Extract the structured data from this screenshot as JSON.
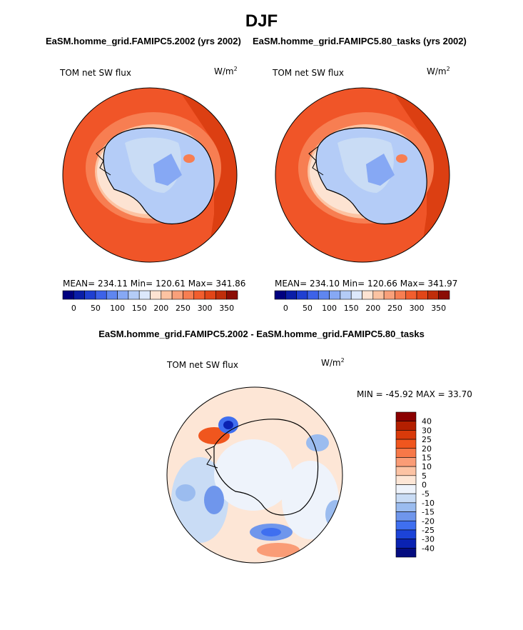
{
  "chart_data": {
    "type": "polar contour map",
    "title": "DJF",
    "panels": [
      {
        "title": "EaSM.homme_grid.FAMIPC5.2002 (yrs 2002)",
        "variable": "TOM net SW flux",
        "units": "W/m2",
        "stats": "MEAN= 234.11   Min= 120.61   Max= 341.86",
        "mean": 234.11,
        "min": 120.61,
        "max": 341.86
      },
      {
        "title": "EaSM.homme_grid.FAMIPC5.80_tasks (yrs 2002)",
        "variable": "TOM net SW flux",
        "units": "W/m2",
        "stats": "MEAN= 234.10   Min= 120.66   Max= 341.97",
        "mean": 234.1,
        "min": 120.66,
        "max": 341.97
      },
      {
        "title": "EaSM.homme_grid.FAMIPC5.2002 - EaSM.homme_grid.FAMIPC5.80_tasks",
        "variable": "TOM net SW flux",
        "units": "W/m2",
        "stats": "MIN = -45.92 MAX =  33.70",
        "min": -45.92,
        "max": 33.7
      }
    ],
    "colorbar_main": {
      "ticks": [
        "0",
        "50",
        "100",
        "150",
        "200",
        "250",
        "300",
        "350"
      ],
      "colors": [
        "#00007f",
        "#0a1ea8",
        "#1f3fd1",
        "#3d62e8",
        "#5f86f0",
        "#86a8f4",
        "#b4ccf7",
        "#dce8fb",
        "#fde3d2",
        "#fcc3a2",
        "#f9a07a",
        "#f77e52",
        "#f25e2e",
        "#e24618",
        "#c02e0a",
        "#8b0d04"
      ]
    },
    "colorbar_diff": {
      "labels": [
        "40",
        "30",
        "25",
        "20",
        "15",
        "10",
        "5",
        "0",
        "-5",
        "-10",
        "-15",
        "-20",
        "-25",
        "-30",
        "-40"
      ],
      "colors": [
        "#8b0000",
        "#b31f00",
        "#d93a0a",
        "#f0561e",
        "#f77848",
        "#fa9c76",
        "#fcc3a4",
        "#fde6d6",
        "#eef3fb",
        "#c9dcf5",
        "#9bbcef",
        "#6f96ec",
        "#3f6ff0",
        "#1c43d8",
        "#0a22b2",
        "#050d80"
      ]
    }
  }
}
